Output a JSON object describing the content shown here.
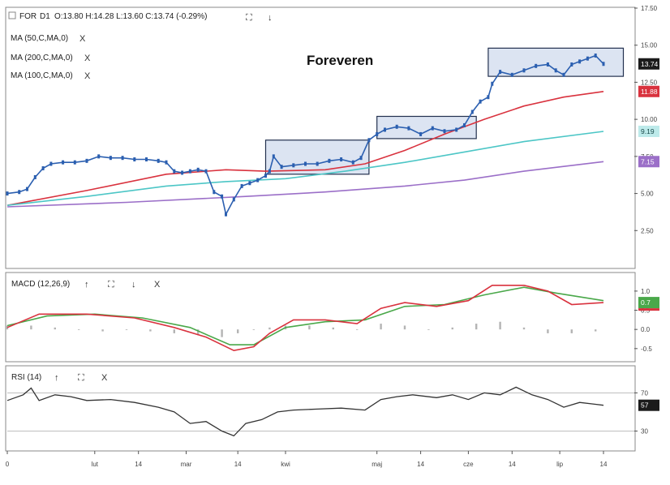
{
  "colors": {
    "ma50": "#d9323e",
    "ma200": "#9b6fc8",
    "ma100": "#4cc6c6",
    "price": "#2b5fb0",
    "macd": "#d9323e",
    "signal": "#4aa84a",
    "hist": "#b4b4b4",
    "rsi": "#333333",
    "box_fill": "#dce4f2",
    "box_stroke": "#23314f"
  },
  "header": {
    "symbol": "FOR",
    "interval": "D1",
    "ohlc": "O:13.80  H:14.28  L:13.60  C:13.74  (-0.29%)",
    "title": "Foreveren"
  },
  "legend": {
    "ma50": "MA (50,C,MA,0)",
    "ma200": "MA (200,C,MA,0)",
    "ma100": "MA (100,C,MA,0)"
  },
  "controls": {
    "expand": "⛶",
    "down": "↓",
    "up": "↑",
    "close": "X"
  },
  "macd_panel": {
    "label": "MACD (12,26,9)"
  },
  "rsi_panel": {
    "label": "RSI (14)"
  },
  "chart_data": [
    {
      "type": "line",
      "title": "Foreveren",
      "ylim": [
        0,
        17.5
      ],
      "yticks": [
        "17.50",
        "15.00",
        "12.50",
        "10.00",
        "7.50",
        "5.00",
        "2.50"
      ],
      "ytick_values": [
        17.5,
        15,
        12.5,
        10,
        7.5,
        5,
        2.5
      ],
      "x_labels": [
        "0",
        "lut",
        "14",
        "mar",
        "14",
        "kwi",
        "maj",
        "14",
        "cze",
        "14",
        "lip",
        "14"
      ],
      "x_label_positions": [
        0,
        22,
        33,
        45,
        58,
        70,
        93,
        104,
        116,
        127,
        139,
        150
      ],
      "price_tags": [
        {
          "name": "close",
          "value": "13.74"
        },
        {
          "name": "ma50",
          "value": "11.88"
        },
        {
          "name": "ma100",
          "value": "9.19"
        },
        {
          "name": "ma200",
          "value": "7.15"
        }
      ],
      "series": [
        {
          "name": "price",
          "points": [
            [
              0,
              5.0
            ],
            [
              3,
              5.1
            ],
            [
              5,
              5.3
            ],
            [
              7,
              6.1
            ],
            [
              9,
              6.7
            ],
            [
              11,
              7.0
            ],
            [
              14,
              7.1
            ],
            [
              17,
              7.1
            ],
            [
              20,
              7.2
            ],
            [
              23,
              7.5
            ],
            [
              26,
              7.4
            ],
            [
              29,
              7.4
            ],
            [
              32,
              7.3
            ],
            [
              35,
              7.3
            ],
            [
              38,
              7.2
            ],
            [
              40,
              7.1
            ],
            [
              42,
              6.5
            ],
            [
              44,
              6.4
            ],
            [
              46,
              6.5
            ],
            [
              48,
              6.6
            ],
            [
              50,
              6.5
            ],
            [
              52,
              5.1
            ],
            [
              54,
              4.8
            ],
            [
              55,
              3.6
            ],
            [
              57,
              4.6
            ],
            [
              59,
              5.5
            ],
            [
              61,
              5.7
            ],
            [
              63,
              5.9
            ],
            [
              65,
              6.2
            ],
            [
              66,
              6.5
            ],
            [
              67,
              7.5
            ],
            [
              69,
              6.8
            ],
            [
              72,
              6.9
            ],
            [
              75,
              7.0
            ],
            [
              78,
              7.0
            ],
            [
              81,
              7.2
            ],
            [
              84,
              7.3
            ],
            [
              87,
              7.1
            ],
            [
              89,
              7.4
            ],
            [
              91,
              8.6
            ],
            [
              93,
              9.0
            ],
            [
              95,
              9.3
            ],
            [
              98,
              9.5
            ],
            [
              101,
              9.4
            ],
            [
              104,
              9.0
            ],
            [
              107,
              9.4
            ],
            [
              110,
              9.2
            ],
            [
              113,
              9.3
            ],
            [
              115,
              9.6
            ],
            [
              117,
              10.5
            ],
            [
              119,
              11.2
            ],
            [
              121,
              11.5
            ],
            [
              122,
              12.4
            ],
            [
              124,
              13.2
            ],
            [
              127,
              13.0
            ],
            [
              130,
              13.3
            ],
            [
              133,
              13.6
            ],
            [
              136,
              13.7
            ],
            [
              138,
              13.3
            ],
            [
              140,
              13.0
            ],
            [
              142,
              13.7
            ],
            [
              144,
              13.9
            ],
            [
              146,
              14.1
            ],
            [
              148,
              14.3
            ],
            [
              150,
              13.74
            ]
          ]
        },
        {
          "name": "MA (50,C,MA,0)",
          "points": [
            [
              0,
              4.2
            ],
            [
              20,
              5.2
            ],
            [
              40,
              6.3
            ],
            [
              55,
              6.6
            ],
            [
              65,
              6.5
            ],
            [
              80,
              6.6
            ],
            [
              90,
              7.0
            ],
            [
              100,
              7.9
            ],
            [
              110,
              9.0
            ],
            [
              120,
              10.0
            ],
            [
              130,
              10.9
            ],
            [
              140,
              11.5
            ],
            [
              150,
              11.88
            ]
          ]
        },
        {
          "name": "MA (100,C,MA,0)",
          "points": [
            [
              0,
              4.2
            ],
            [
              20,
              4.8
            ],
            [
              40,
              5.5
            ],
            [
              55,
              5.8
            ],
            [
              70,
              6.0
            ],
            [
              85,
              6.5
            ],
            [
              100,
              7.1
            ],
            [
              115,
              7.8
            ],
            [
              130,
              8.5
            ],
            [
              150,
              9.19
            ]
          ]
        },
        {
          "name": "MA (200,C,MA,0)",
          "points": [
            [
              0,
              4.1
            ],
            [
              30,
              4.4
            ],
            [
              60,
              4.8
            ],
            [
              80,
              5.1
            ],
            [
              100,
              5.5
            ],
            [
              115,
              5.9
            ],
            [
              130,
              6.5
            ],
            [
              150,
              7.15
            ]
          ]
        }
      ],
      "annotations": [
        {
          "x0": 65,
          "x1": 91,
          "y0": 6.3,
          "y1": 8.6
        },
        {
          "x0": 93,
          "x1": 118,
          "y0": 8.7,
          "y1": 10.2
        },
        {
          "x0": 121,
          "x1": 155,
          "y0": 12.9,
          "y1": 14.8
        }
      ]
    },
    {
      "type": "line",
      "title": "MACD (12,26,9)",
      "ylim": [
        -0.8,
        1.4
      ],
      "yticks": [
        "1.0",
        "0.5",
        "0.0",
        "-0.5"
      ],
      "ytick_values": [
        1.0,
        0.5,
        0.0,
        -0.5
      ],
      "price_tags": [
        {
          "name": "macd",
          "value": "0.7"
        }
      ],
      "series": [
        {
          "name": "MACD",
          "points": [
            [
              0,
              0.05
            ],
            [
              8,
              0.4
            ],
            [
              20,
              0.4
            ],
            [
              32,
              0.3
            ],
            [
              42,
              0.05
            ],
            [
              50,
              -0.2
            ],
            [
              57,
              -0.55
            ],
            [
              62,
              -0.45
            ],
            [
              66,
              -0.1
            ],
            [
              72,
              0.25
            ],
            [
              80,
              0.25
            ],
            [
              88,
              0.15
            ],
            [
              94,
              0.55
            ],
            [
              100,
              0.7
            ],
            [
              108,
              0.6
            ],
            [
              116,
              0.75
            ],
            [
              122,
              1.15
            ],
            [
              130,
              1.15
            ],
            [
              136,
              1.0
            ],
            [
              142,
              0.65
            ],
            [
              150,
              0.7
            ]
          ]
        },
        {
          "name": "Signal",
          "points": [
            [
              0,
              0.1
            ],
            [
              10,
              0.35
            ],
            [
              22,
              0.4
            ],
            [
              34,
              0.3
            ],
            [
              46,
              0.05
            ],
            [
              56,
              -0.4
            ],
            [
              62,
              -0.4
            ],
            [
              70,
              0.05
            ],
            [
              80,
              0.2
            ],
            [
              90,
              0.25
            ],
            [
              100,
              0.6
            ],
            [
              110,
              0.65
            ],
            [
              120,
              0.9
            ],
            [
              130,
              1.1
            ],
            [
              138,
              0.95
            ],
            [
              150,
              0.75
            ]
          ]
        },
        {
          "name": "Histogram",
          "points": [
            [
              0,
              0.1
            ],
            [
              6,
              0.1
            ],
            [
              12,
              0.05
            ],
            [
              18,
              0.0
            ],
            [
              24,
              -0.05
            ],
            [
              30,
              0.0
            ],
            [
              36,
              -0.05
            ],
            [
              42,
              -0.1
            ],
            [
              48,
              -0.15
            ],
            [
              54,
              -0.2
            ],
            [
              58,
              -0.1
            ],
            [
              62,
              0.0
            ],
            [
              66,
              0.05
            ],
            [
              70,
              0.1
            ],
            [
              76,
              0.1
            ],
            [
              82,
              0.05
            ],
            [
              88,
              0.0
            ],
            [
              94,
              0.15
            ],
            [
              100,
              0.1
            ],
            [
              106,
              0.0
            ],
            [
              112,
              0.05
            ],
            [
              118,
              0.15
            ],
            [
              124,
              0.2
            ],
            [
              130,
              0.05
            ],
            [
              136,
              -0.1
            ],
            [
              142,
              -0.1
            ],
            [
              148,
              -0.05
            ]
          ]
        }
      ]
    },
    {
      "type": "line",
      "title": "RSI (14)",
      "ylim": [
        0,
        100
      ],
      "yticks": [
        "70",
        "30"
      ],
      "ytick_values": [
        70,
        30
      ],
      "price_tags": [
        {
          "name": "rsi",
          "value": "57"
        }
      ],
      "series": [
        {
          "name": "RSI",
          "points": [
            [
              0,
              62
            ],
            [
              4,
              68
            ],
            [
              6,
              75
            ],
            [
              8,
              62
            ],
            [
              12,
              68
            ],
            [
              16,
              66
            ],
            [
              20,
              62
            ],
            [
              26,
              63
            ],
            [
              32,
              60
            ],
            [
              38,
              55
            ],
            [
              42,
              50
            ],
            [
              46,
              38
            ],
            [
              50,
              40
            ],
            [
              54,
              30
            ],
            [
              57,
              25
            ],
            [
              60,
              38
            ],
            [
              64,
              42
            ],
            [
              68,
              50
            ],
            [
              72,
              52
            ],
            [
              78,
              53
            ],
            [
              84,
              54
            ],
            [
              90,
              52
            ],
            [
              94,
              63
            ],
            [
              98,
              66
            ],
            [
              102,
              68
            ],
            [
              108,
              65
            ],
            [
              112,
              68
            ],
            [
              116,
              63
            ],
            [
              120,
              70
            ],
            [
              124,
              68
            ],
            [
              128,
              76
            ],
            [
              132,
              68
            ],
            [
              136,
              63
            ],
            [
              140,
              55
            ],
            [
              144,
              60
            ],
            [
              148,
              58
            ],
            [
              150,
              57
            ]
          ]
        }
      ]
    }
  ]
}
